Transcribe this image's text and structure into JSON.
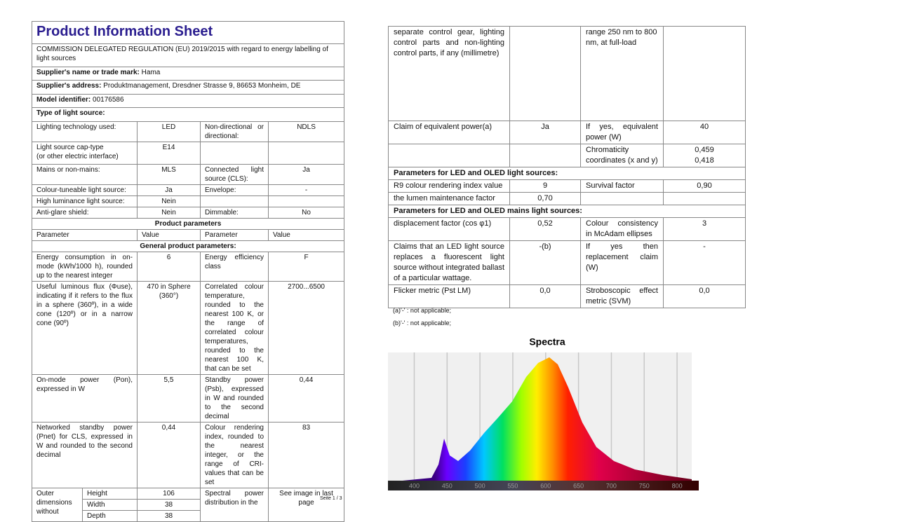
{
  "header": {
    "title": "Product Information Sheet",
    "regulation": "COMMISSION DELEGATED REGULATION (EU) 2019/2015 with regard to energy labelling of light sources"
  },
  "supplier": {
    "name_label": "Supplier's name or trade mark:",
    "name": "Hama",
    "address_label": "Supplier's address:",
    "address": "Produktmanagement, Dresdner Strasse 9, 86653 Monheim, DE",
    "model_label": "Model identifier:",
    "model": "00176586",
    "type_heading": "Type of light source:"
  },
  "type_rows": [
    [
      "Lighting technology used:",
      "LED",
      "Non-directional or directional:",
      "NDLS"
    ],
    [
      "Light source cap-type",
      "(or other electric interface)",
      "E14"
    ],
    [
      "Mains or non-mains:",
      "MLS",
      "Connected light source (CLS):",
      "Ja"
    ],
    [
      "Colour-tuneable light source:",
      "Ja",
      "Envelope:",
      "-"
    ],
    [
      "High luminance light source:",
      "Nein"
    ],
    [
      "Anti-glare shield:",
      "Nein",
      "Dimmable:",
      "No"
    ]
  ],
  "params": {
    "heading": "Product parameters",
    "col_headers": [
      "Parameter",
      "Value",
      "Parameter",
      "Value"
    ],
    "general_heading": "General product parameters:",
    "rows": [
      [
        "Energy consumption in on-mode (kWh/1000 h), rounded up to the nearest integer",
        "6",
        "Energy efficiency class",
        "F"
      ],
      [
        "Useful luminous flux (Φuse), indicating if it refers to the flux in a sphere (360º), in a wide cone (120º) or in a narrow cone (90º)",
        "470 in Sphere (360°)",
        "Correlated colour temperature, rounded to the nearest 100 K, or the range of correlated colour temperatures, rounded to the nearest 100 K, that can be set",
        "2700...6500"
      ],
      [
        "On-mode power (Pon), expressed in W",
        "5,5",
        "Standby power (Psb), expressed in W and rounded to the second decimal",
        "0,44"
      ],
      [
        "Networked standby power (Pnet) for CLS, expressed in W and rounded to the second decimal",
        "0,44",
        "Colour rendering index, rounded to the nearest integer, or the range of CRI-values that can be set",
        "83"
      ]
    ],
    "dimensions": {
      "label": "Outer dimensions without",
      "items": [
        [
          "Height",
          "106"
        ],
        [
          "Width",
          "38"
        ],
        [
          "Depth",
          "38"
        ]
      ],
      "param": "Spectral power distribution in the",
      "value": "See image in last page"
    }
  },
  "page_footer": "Seite 1 / 3",
  "right_table": {
    "rows1": [
      [
        "separate control gear, lighting control parts and non-lighting control parts, if any (millimetre)",
        "",
        "range 250 nm to 800 nm, at full-load",
        ""
      ],
      [
        "Claim of equivalent power(a)",
        "Ja",
        "If yes, equivalent power (W)",
        "40"
      ],
      [
        "",
        "",
        "Chromaticity coordinates (x and y)",
        "0,459",
        "0,418"
      ]
    ],
    "led_heading": "Parameters for LED and OLED light sources:",
    "rows2": [
      [
        "R9 colour rendering index value",
        "9",
        "Survival factor",
        "0,90"
      ],
      [
        "the lumen maintenance factor",
        "0,70",
        "",
        ""
      ]
    ],
    "mains_heading": "Parameters for LED and OLED mains light sources:",
    "rows3": [
      [
        "displacement factor (cos φ1)",
        "0,52",
        "Colour consistency in McAdam ellipses",
        "3"
      ],
      [
        "Claims that an LED light source replaces a fluorescent light source without integrated ballast of a particular wattage.",
        "-(b)",
        "If yes then replacement claim (W)",
        "-"
      ],
      [
        "Flicker metric (Pst LM)",
        "0,0",
        "Stroboscopic effect metric (SVM)",
        "0,0"
      ]
    ],
    "notes": [
      "(a)'-' : not applicable;",
      "(b)'-' : not applicable;"
    ]
  },
  "spectrum": {
    "title": "Spectra",
    "xlim": [
      360,
      833
    ],
    "xticks": [
      400,
      450,
      500,
      550,
      600,
      650,
      700,
      750,
      800
    ]
  }
}
